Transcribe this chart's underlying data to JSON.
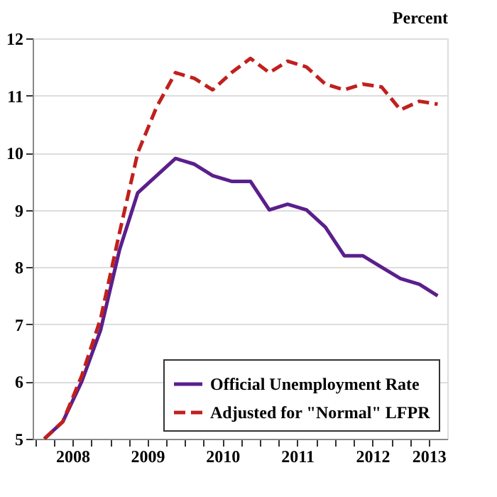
{
  "chart_data": {
    "type": "line",
    "ylabel": "Percent",
    "x": [
      "2008-02-15",
      "2008-05-15",
      "2008-08-15",
      "2008-11-15",
      "2009-02-15",
      "2009-05-15",
      "2009-08-15",
      "2009-11-15",
      "2010-02-15",
      "2010-05-15",
      "2010-08-15",
      "2010-11-15",
      "2011-02-15",
      "2011-05-15",
      "2011-08-15",
      "2011-11-15",
      "2012-02-15",
      "2012-05-15",
      "2012-08-15",
      "2012-11-15",
      "2013-02-15",
      "2013-05-15"
    ],
    "series": [
      {
        "name": "Official Unemployment Rate",
        "color": "#5b1f8c",
        "line_style": "solid",
        "values": [
          5.0,
          5.3,
          6.0,
          6.9,
          8.3,
          9.3,
          9.6,
          9.9,
          9.8,
          9.6,
          9.5,
          9.5,
          9.0,
          9.1,
          9.0,
          8.7,
          8.2,
          8.2,
          8.0,
          7.8,
          7.7,
          7.5
        ]
      },
      {
        "name": "Adjusted for \"Normal\" LFPR",
        "color": "#c0201e",
        "line_style": "dashed",
        "values": [
          5.0,
          5.3,
          6.1,
          7.1,
          8.6,
          10.0,
          10.8,
          11.4,
          11.3,
          11.1,
          11.4,
          11.65,
          11.4,
          11.6,
          11.5,
          11.2,
          11.1,
          11.2,
          11.15,
          10.75,
          10.9,
          10.85
        ]
      }
    ],
    "xlim": [
      "2007-12-20",
      "2013-07-01"
    ],
    "xticks": [
      {
        "value": "2008-01-01",
        "label": null
      },
      {
        "value": "2008-04-01",
        "label": null
      },
      {
        "value": "2008-07-01",
        "label": "2008"
      },
      {
        "value": "2008-10-01",
        "label": null
      },
      {
        "value": "2009-01-01",
        "label": null
      },
      {
        "value": "2009-04-01",
        "label": null
      },
      {
        "value": "2009-07-01",
        "label": "2009"
      },
      {
        "value": "2009-10-01",
        "label": null
      },
      {
        "value": "2010-01-01",
        "label": null
      },
      {
        "value": "2010-04-01",
        "label": null
      },
      {
        "value": "2010-07-01",
        "label": "2010"
      },
      {
        "value": "2010-10-01",
        "label": null
      },
      {
        "value": "2011-01-01",
        "label": null
      },
      {
        "value": "2011-04-01",
        "label": null
      },
      {
        "value": "2011-07-01",
        "label": "2011"
      },
      {
        "value": "2011-10-01",
        "label": null
      },
      {
        "value": "2012-01-01",
        "label": null
      },
      {
        "value": "2012-04-01",
        "label": null
      },
      {
        "value": "2012-07-01",
        "label": "2012"
      },
      {
        "value": "2012-10-01",
        "label": null
      },
      {
        "value": "2013-01-01",
        "label": null
      },
      {
        "value": "2013-04-01",
        "label": "2013"
      }
    ],
    "ylim": [
      5,
      12
    ],
    "yticks": [
      5,
      6,
      7,
      8,
      9,
      10,
      11,
      12
    ],
    "grid": "y",
    "legend": "bottom right"
  }
}
